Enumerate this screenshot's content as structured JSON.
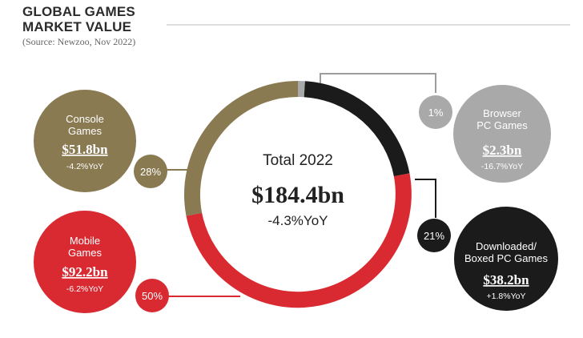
{
  "header": {
    "title_line1": "GLOBAL GAMES",
    "title_line2": "MARKET VALUE",
    "source": "(Source: Newzoo, Nov 2022)"
  },
  "colors": {
    "console": "#8a7a52",
    "mobile": "#d92a32",
    "downloaded": "#1b1b1b",
    "browser": "#a9a9a9",
    "connector": "#9c9c9c"
  },
  "chart_data": {
    "type": "pie",
    "title": "GLOBAL GAMES MARKET VALUE",
    "center": {
      "label": "Total 2022",
      "value": "$184.4bn",
      "yoy": "-4.3%YoY"
    },
    "segments": [
      {
        "name": "Browser PC Games",
        "name_lines": [
          "Browser",
          "PC Games"
        ],
        "value": 2.3,
        "value_label": "$2.3bn",
        "share": 1,
        "share_label": "1%",
        "yoy": "-16.7%YoY",
        "color_key": "browser"
      },
      {
        "name": "Downloaded/Boxed PC Games",
        "name_lines": [
          "Downloaded/",
          "Boxed PC Games"
        ],
        "value": 38.2,
        "value_label": "$38.2bn",
        "share": 21,
        "share_label": "21%",
        "yoy": "+1.8%YoY",
        "color_key": "downloaded"
      },
      {
        "name": "Mobile Games",
        "name_lines": [
          "Mobile",
          "Games"
        ],
        "value": 92.2,
        "value_label": "$92.2bn",
        "share": 50,
        "share_label": "50%",
        "yoy": "-6.2%YoY",
        "color_key": "mobile"
      },
      {
        "name": "Console Games",
        "name_lines": [
          "Console",
          "Games"
        ],
        "value": 51.8,
        "value_label": "$51.8bn",
        "share": 28,
        "share_label": "28%",
        "yoy": "-4.2%YoY",
        "color_key": "console"
      }
    ]
  }
}
